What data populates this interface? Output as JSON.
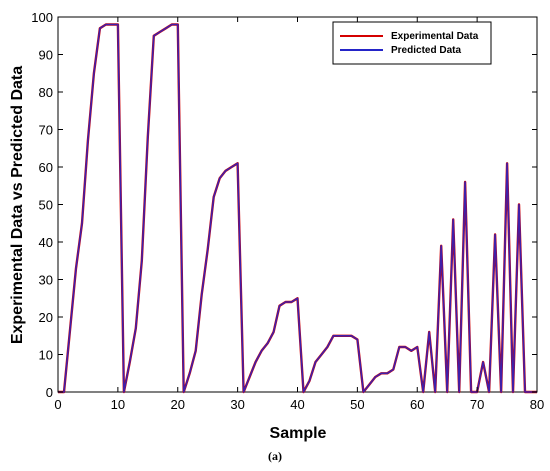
{
  "caption": "(a)",
  "chart_data": {
    "type": "line",
    "title": "",
    "xlabel": "Sample",
    "ylabel": "Experimental Data vs Predicted Data",
    "xlim": [
      0,
      80
    ],
    "ylim": [
      0,
      100
    ],
    "xticks": [
      0,
      10,
      20,
      30,
      40,
      50,
      60,
      70,
      80
    ],
    "yticks": [
      0,
      10,
      20,
      30,
      40,
      50,
      60,
      70,
      80,
      90,
      100
    ],
    "grid": false,
    "legend_position": "top-right",
    "series": [
      {
        "name": "Experimental Data",
        "color": "#d40000",
        "points": [
          [
            0,
            0
          ],
          [
            1,
            0
          ],
          [
            3,
            33
          ],
          [
            4,
            45
          ],
          [
            5,
            67
          ],
          [
            6,
            85
          ],
          [
            7,
            97
          ],
          [
            8,
            98
          ],
          [
            9,
            98
          ],
          [
            10,
            98
          ],
          [
            11,
            0
          ],
          [
            12,
            8
          ],
          [
            13,
            17
          ],
          [
            14,
            35
          ],
          [
            15,
            68
          ],
          [
            16,
            95
          ],
          [
            17,
            96
          ],
          [
            18,
            97
          ],
          [
            19,
            98
          ],
          [
            20,
            98
          ],
          [
            21,
            0
          ],
          [
            22,
            5
          ],
          [
            23,
            11
          ],
          [
            24,
            26
          ],
          [
            25,
            38
          ],
          [
            26,
            52
          ],
          [
            27,
            57
          ],
          [
            28,
            59
          ],
          [
            29,
            60
          ],
          [
            30,
            61
          ],
          [
            31,
            0
          ],
          [
            32,
            4
          ],
          [
            33,
            8
          ],
          [
            34,
            11
          ],
          [
            35,
            13
          ],
          [
            36,
            16
          ],
          [
            37,
            23
          ],
          [
            38,
            24
          ],
          [
            39,
            24
          ],
          [
            40,
            25
          ],
          [
            41,
            0
          ],
          [
            42,
            3
          ],
          [
            43,
            8
          ],
          [
            44,
            10
          ],
          [
            45,
            12
          ],
          [
            46,
            15
          ],
          [
            47,
            15
          ],
          [
            48,
            15
          ],
          [
            49,
            15
          ],
          [
            50,
            14
          ],
          [
            51,
            0
          ],
          [
            52,
            2
          ],
          [
            53,
            4
          ],
          [
            54,
            5
          ],
          [
            55,
            5
          ],
          [
            56,
            6
          ],
          [
            57,
            12
          ],
          [
            58,
            12
          ],
          [
            59,
            11
          ],
          [
            60,
            12
          ],
          [
            61,
            0
          ],
          [
            62,
            16
          ],
          [
            63,
            0
          ],
          [
            64,
            39
          ],
          [
            65,
            0
          ],
          [
            66,
            46
          ],
          [
            67,
            0
          ],
          [
            68,
            56
          ],
          [
            69,
            0
          ],
          [
            70,
            0
          ],
          [
            71,
            8
          ],
          [
            72,
            0
          ],
          [
            73,
            42
          ],
          [
            74,
            0
          ],
          [
            75,
            61
          ],
          [
            76,
            0
          ],
          [
            77,
            50
          ],
          [
            78,
            0
          ],
          [
            79,
            0
          ],
          [
            80,
            0
          ]
        ]
      },
      {
        "name": "Predicted Data",
        "color": "#2424c8",
        "points": [
          [
            0,
            0
          ],
          [
            1,
            0
          ],
          [
            3,
            33
          ],
          [
            4,
            45
          ],
          [
            5,
            67
          ],
          [
            6,
            85
          ],
          [
            7,
            97
          ],
          [
            8,
            98
          ],
          [
            9,
            98
          ],
          [
            10,
            98
          ],
          [
            11,
            0
          ],
          [
            12,
            8
          ],
          [
            13,
            17
          ],
          [
            14,
            35
          ],
          [
            15,
            68
          ],
          [
            16,
            95
          ],
          [
            17,
            96
          ],
          [
            18,
            97
          ],
          [
            19,
            98
          ],
          [
            20,
            98
          ],
          [
            21,
            0
          ],
          [
            22,
            5
          ],
          [
            23,
            11
          ],
          [
            24,
            26
          ],
          [
            25,
            38
          ],
          [
            26,
            52
          ],
          [
            27,
            57
          ],
          [
            28,
            59
          ],
          [
            29,
            60
          ],
          [
            30,
            61
          ],
          [
            31,
            0
          ],
          [
            32,
            4
          ],
          [
            33,
            8
          ],
          [
            34,
            11
          ],
          [
            35,
            13
          ],
          [
            36,
            16
          ],
          [
            37,
            23
          ],
          [
            38,
            24
          ],
          [
            39,
            24
          ],
          [
            40,
            25
          ],
          [
            41,
            0
          ],
          [
            42,
            3
          ],
          [
            43,
            8
          ],
          [
            44,
            10
          ],
          [
            45,
            12
          ],
          [
            46,
            15
          ],
          [
            47,
            15
          ],
          [
            48,
            15
          ],
          [
            49,
            15
          ],
          [
            50,
            14
          ],
          [
            51,
            0
          ],
          [
            52,
            2
          ],
          [
            53,
            4
          ],
          [
            54,
            5
          ],
          [
            55,
            5
          ],
          [
            56,
            6
          ],
          [
            57,
            12
          ],
          [
            58,
            12
          ],
          [
            59,
            11
          ],
          [
            60,
            12
          ],
          [
            61,
            0
          ],
          [
            62,
            16
          ],
          [
            63,
            0
          ],
          [
            64,
            39
          ],
          [
            65,
            0
          ],
          [
            66,
            46
          ],
          [
            67,
            0
          ],
          [
            68,
            56
          ],
          [
            69,
            0
          ],
          [
            70,
            0
          ],
          [
            71,
            8
          ],
          [
            72,
            0
          ],
          [
            73,
            42
          ],
          [
            74,
            0
          ],
          [
            75,
            61
          ],
          [
            76,
            0
          ],
          [
            77,
            50
          ],
          [
            78,
            0
          ],
          [
            79,
            0
          ],
          [
            80,
            0
          ]
        ]
      }
    ]
  }
}
